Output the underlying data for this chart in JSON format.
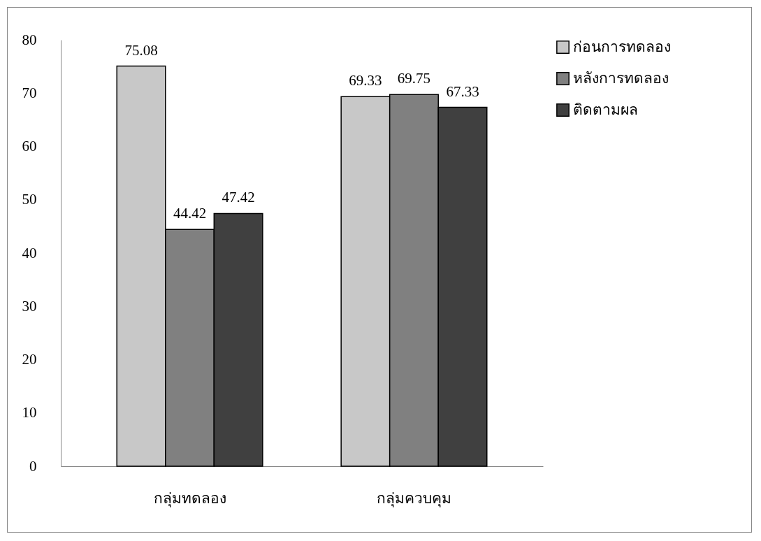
{
  "chart_data": {
    "type": "bar",
    "categories": [
      "กลุ่มทดลอง",
      "กลุ่มควบคุม"
    ],
    "series": [
      {
        "name": "ก่อนการทดลอง",
        "color": "#c8c8c8",
        "values": [
          75.08,
          69.33
        ]
      },
      {
        "name": "หลังการทดลอง",
        "color": "#808080",
        "values": [
          44.42,
          69.75
        ]
      },
      {
        "name": "ติดตามผล",
        "color": "#404040",
        "values": [
          47.42,
          67.33
        ]
      }
    ],
    "ylim": [
      0,
      80
    ],
    "yticks": [
      0,
      10,
      20,
      30,
      40,
      50,
      60,
      70,
      80
    ],
    "grid": false,
    "legend": "right",
    "data_labels": true
  }
}
